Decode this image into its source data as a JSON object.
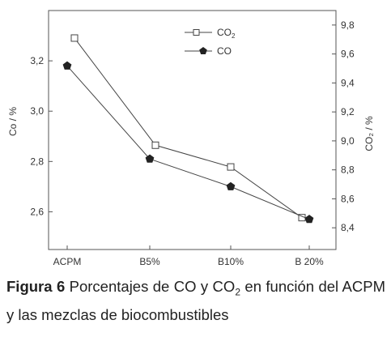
{
  "chart_data": {
    "type": "line",
    "categories": [
      "ACPM",
      "B5%",
      "B10%",
      "B 20%"
    ],
    "series": [
      {
        "name": "CO2",
        "axis": "right",
        "marker": "open-square",
        "values": [
          9.71,
          8.97,
          8.82,
          8.47
        ]
      },
      {
        "name": "CO",
        "axis": "left",
        "marker": "filled-pentagon",
        "values": [
          3.18,
          2.81,
          2.7,
          2.57
        ]
      }
    ],
    "left_axis": {
      "label": "Co / %",
      "ticks": [
        "2,6",
        "2,8",
        "3,0",
        "3,2"
      ],
      "tick_values": [
        2.6,
        2.8,
        3.0,
        3.2
      ],
      "range": [
        2.45,
        3.4
      ]
    },
    "right_axis": {
      "label": "CO₂ / %",
      "ticks": [
        "8,4",
        "8,6",
        "8,8",
        "9,0",
        "9,2",
        "9,4",
        "9,6",
        "9,8"
      ],
      "tick_values": [
        8.4,
        8.6,
        8.8,
        9.0,
        9.2,
        9.4,
        9.6,
        9.8
      ],
      "range": [
        8.25,
        9.9
      ]
    },
    "legend": {
      "placement": "top-center",
      "entries": [
        {
          "label_main": "CO",
          "label_sub": "2",
          "marker": "open-square"
        },
        {
          "label_main": "CO",
          "label_sub": "",
          "marker": "filled-pentagon"
        }
      ]
    },
    "colors": {
      "line": "#444444",
      "axis": "#555555",
      "marker_fill": "#222222"
    }
  },
  "caption": {
    "figure_label": "Figura 6",
    "text_part1": " Porcentajes de CO y CO",
    "text_sub": "2",
    "text_part2": " en función del ACPM y las mezclas de biocombustibles"
  }
}
